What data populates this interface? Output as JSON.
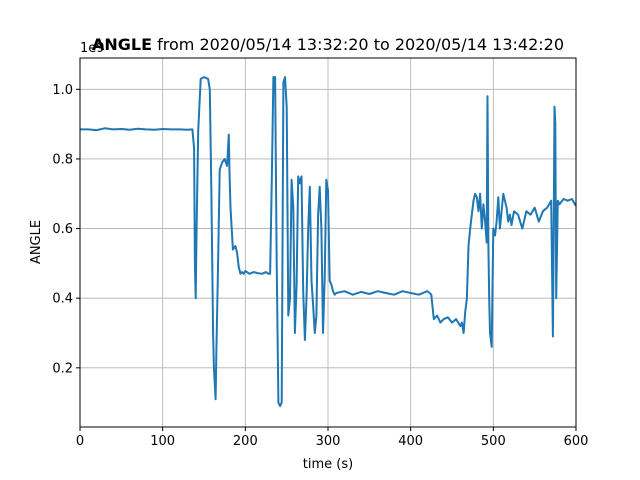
{
  "chart_data": {
    "type": "line",
    "title_bold": "ANGLE",
    "title_rest": " from 2020/05/14 13:32:20 to 2020/05/14 13:42:20",
    "xlabel": "time (s)",
    "ylabel": "ANGLE",
    "y_offset_text": "1e9",
    "xlim": [
      0,
      600
    ],
    "ylim": [
      0.03,
      1.09
    ],
    "x_ticks": [
      0,
      100,
      200,
      300,
      400,
      500,
      600
    ],
    "y_ticks": [
      0.2,
      0.4,
      0.6,
      0.8,
      1.0
    ],
    "grid": true,
    "series_color": "#1f77b4",
    "series": [
      {
        "x": [
          0,
          10,
          20,
          30,
          40,
          50,
          60,
          70,
          80,
          90,
          100,
          110,
          120,
          130,
          136,
          138,
          139,
          140,
          141,
          143,
          146,
          150,
          155,
          157,
          159,
          161,
          162,
          164,
          165,
          167,
          169,
          172,
          175,
          178,
          180,
          181,
          182,
          185,
          188,
          190,
          192,
          194,
          196,
          198,
          200,
          205,
          210,
          215,
          220,
          225,
          228,
          230,
          232,
          234,
          236,
          238,
          240,
          242,
          244,
          246,
          248,
          250,
          252,
          254,
          256,
          258,
          260,
          262,
          264,
          266,
          268,
          270,
          272,
          274,
          276,
          278,
          280,
          282,
          284,
          286,
          288,
          290,
          292,
          294,
          296,
          298,
          300,
          302,
          304,
          306,
          308,
          310,
          320,
          330,
          340,
          350,
          360,
          370,
          380,
          390,
          400,
          410,
          420,
          423,
          425,
          428,
          432,
          436,
          440,
          445,
          450,
          455,
          460,
          462,
          464,
          466,
          468,
          470,
          472,
          474,
          476,
          478,
          480,
          482,
          484,
          486,
          488,
          490,
          492,
          493,
          494,
          495,
          496,
          498,
          500,
          502,
          504,
          506,
          508,
          510,
          512,
          514,
          516,
          518,
          520,
          522,
          525,
          530,
          535,
          540,
          545,
          550,
          555,
          560,
          565,
          570,
          572,
          573,
          574,
          575,
          576,
          578,
          580,
          585,
          590,
          595,
          600
        ],
        "y": [
          0.885,
          0.885,
          0.883,
          0.888,
          0.885,
          0.886,
          0.884,
          0.887,
          0.885,
          0.884,
          0.886,
          0.885,
          0.885,
          0.884,
          0.885,
          0.83,
          0.5,
          0.4,
          0.6,
          0.88,
          1.03,
          1.035,
          1.03,
          1.0,
          0.7,
          0.3,
          0.2,
          0.11,
          0.25,
          0.5,
          0.77,
          0.79,
          0.8,
          0.78,
          0.87,
          0.75,
          0.66,
          0.54,
          0.55,
          0.53,
          0.49,
          0.47,
          0.475,
          0.47,
          0.478,
          0.47,
          0.475,
          0.472,
          0.47,
          0.475,
          0.47,
          0.47,
          0.74,
          1.035,
          1.035,
          0.5,
          0.1,
          0.09,
          0.1,
          1.02,
          1.035,
          0.95,
          0.35,
          0.4,
          0.74,
          0.66,
          0.3,
          0.44,
          0.75,
          0.73,
          0.75,
          0.42,
          0.28,
          0.4,
          0.6,
          0.72,
          0.45,
          0.38,
          0.3,
          0.35,
          0.64,
          0.72,
          0.6,
          0.3,
          0.46,
          0.74,
          0.71,
          0.45,
          0.44,
          0.42,
          0.41,
          0.415,
          0.42,
          0.41,
          0.418,
          0.412,
          0.42,
          0.415,
          0.41,
          0.42,
          0.415,
          0.41,
          0.42,
          0.415,
          0.41,
          0.34,
          0.35,
          0.33,
          0.34,
          0.345,
          0.33,
          0.34,
          0.32,
          0.33,
          0.3,
          0.36,
          0.4,
          0.55,
          0.6,
          0.64,
          0.68,
          0.7,
          0.69,
          0.65,
          0.7,
          0.6,
          0.67,
          0.62,
          0.56,
          0.98,
          0.55,
          0.4,
          0.3,
          0.26,
          0.6,
          0.58,
          0.62,
          0.69,
          0.6,
          0.65,
          0.7,
          0.68,
          0.66,
          0.62,
          0.64,
          0.61,
          0.65,
          0.64,
          0.6,
          0.65,
          0.64,
          0.66,
          0.62,
          0.65,
          0.66,
          0.68,
          0.29,
          0.6,
          0.95,
          0.9,
          0.4,
          0.68,
          0.67,
          0.685,
          0.68,
          0.685,
          0.665
        ]
      }
    ]
  }
}
